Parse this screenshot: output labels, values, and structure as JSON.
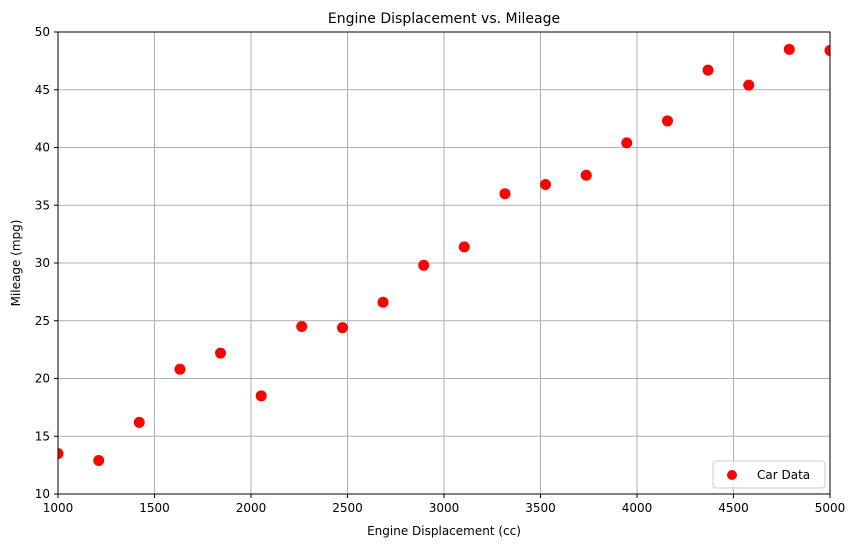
{
  "chart_data": {
    "type": "scatter",
    "title": "Engine Displacement vs. Mileage",
    "xlabel": "Engine Displacement (cc)",
    "ylabel": "Mileage (mpg)",
    "xlim": [
      1000,
      5000
    ],
    "ylim": [
      10,
      50
    ],
    "x_ticks": [
      1000,
      1500,
      2000,
      2500,
      3000,
      3500,
      4000,
      4500,
      5000
    ],
    "y_ticks": [
      10,
      15,
      20,
      25,
      30,
      35,
      40,
      45,
      50
    ],
    "grid": true,
    "legend_position": "lower-right",
    "series": [
      {
        "name": "Car Data",
        "color": "#ff0000",
        "x": [
          1000,
          1211,
          1421,
          1632,
          1842,
          2053,
          2263,
          2474,
          2684,
          2895,
          3105,
          3316,
          3526,
          3737,
          3947,
          4158,
          4368,
          4579,
          4789,
          5000
        ],
        "y": [
          13.5,
          12.9,
          16.2,
          20.8,
          22.2,
          18.5,
          24.5,
          24.4,
          26.6,
          29.8,
          31.4,
          36.0,
          36.8,
          37.6,
          40.4,
          42.3,
          46.7,
          45.4,
          48.5,
          48.4
        ]
      }
    ]
  }
}
